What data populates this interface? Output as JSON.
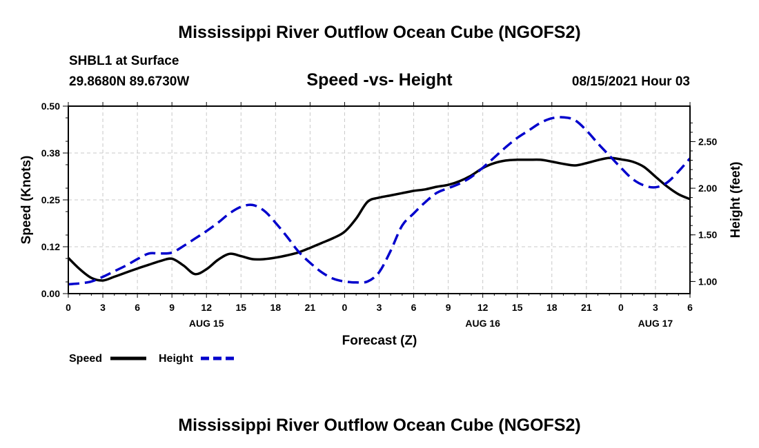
{
  "page_title": "Mississippi River Outflow Ocean Cube (NGOFS2)",
  "footer_title": "Mississippi River Outflow Ocean Cube (NGOFS2)",
  "station": "SHBL1 at Surface",
  "coordinates": "29.8680N  89.6730W",
  "plot_title": "Speed -vs- Height",
  "datetime": "08/15/2021 Hour 03",
  "chart_data": {
    "type": "line",
    "xlabel": "Forecast (Z)",
    "ylabel_left": "Speed (Knots)",
    "ylabel_right": "Height (feet)",
    "x_range_hours": [
      0,
      54
    ],
    "x_tick_labels": [
      "0",
      "3",
      "6",
      "9",
      "12",
      "15",
      "18",
      "21",
      "0",
      "3",
      "6",
      "9",
      "12",
      "15",
      "18",
      "21",
      "0",
      "3",
      "6"
    ],
    "date_labels": [
      {
        "label": "AUG 15",
        "hour": 12
      },
      {
        "label": "AUG 16",
        "hour": 36
      },
      {
        "label": "AUG 17",
        "hour": 51
      }
    ],
    "y_left": {
      "range": [
        0,
        0.5
      ],
      "ticks": [
        "0.00",
        "0.12",
        "0.25",
        "0.38",
        "0.50"
      ]
    },
    "y_right": {
      "range": [
        0.87,
        2.88
      ],
      "ticks": [
        "1.00",
        "1.50",
        "2.00",
        "2.50"
      ]
    },
    "series": [
      {
        "name": "Speed",
        "axis": "left",
        "color": "#000000",
        "dash": "solid",
        "x": [
          0,
          1,
          2,
          3,
          4,
          5,
          6,
          7,
          8,
          9,
          10,
          11,
          12,
          13,
          14,
          15,
          16,
          17,
          18,
          19,
          20,
          21,
          22,
          23,
          24,
          25,
          26,
          27,
          28,
          29,
          30,
          31,
          32,
          33,
          34,
          35,
          36,
          37,
          38,
          39,
          40,
          41,
          42,
          43,
          44,
          45,
          46,
          47,
          48,
          49,
          50,
          51,
          52,
          53,
          54
        ],
        "values": [
          0.095,
          0.065,
          0.042,
          0.035,
          0.045,
          0.056,
          0.067,
          0.077,
          0.087,
          0.093,
          0.075,
          0.052,
          0.065,
          0.09,
          0.106,
          0.1,
          0.092,
          0.092,
          0.096,
          0.102,
          0.11,
          0.122,
          0.135,
          0.148,
          0.165,
          0.2,
          0.245,
          0.256,
          0.262,
          0.268,
          0.274,
          0.278,
          0.285,
          0.29,
          0.3,
          0.315,
          0.335,
          0.348,
          0.355,
          0.357,
          0.357,
          0.357,
          0.352,
          0.346,
          0.342,
          0.348,
          0.356,
          0.362,
          0.358,
          0.352,
          0.338,
          0.312,
          0.286,
          0.265,
          0.252
        ]
      },
      {
        "name": "Height",
        "axis": "right",
        "color": "#0000cc",
        "dash": "dashed",
        "x": [
          0,
          1,
          2,
          3,
          4,
          5,
          6,
          7,
          8,
          9,
          10,
          11,
          12,
          13,
          14,
          15,
          16,
          17,
          18,
          19,
          20,
          21,
          22,
          23,
          24,
          25,
          26,
          27,
          28,
          29,
          30,
          31,
          32,
          33,
          34,
          35,
          36,
          37,
          38,
          39,
          40,
          41,
          42,
          43,
          44,
          45,
          46,
          47,
          48,
          49,
          50,
          51,
          52,
          53,
          54
        ],
        "values": [
          0.97,
          0.98,
          1.0,
          1.05,
          1.11,
          1.17,
          1.24,
          1.3,
          1.3,
          1.31,
          1.38,
          1.46,
          1.54,
          1.63,
          1.73,
          1.8,
          1.82,
          1.76,
          1.63,
          1.48,
          1.32,
          1.2,
          1.1,
          1.03,
          1.0,
          0.99,
          1.0,
          1.1,
          1.33,
          1.6,
          1.73,
          1.85,
          1.95,
          2.0,
          2.05,
          2.12,
          2.22,
          2.33,
          2.44,
          2.54,
          2.62,
          2.7,
          2.75,
          2.76,
          2.73,
          2.62,
          2.48,
          2.35,
          2.22,
          2.1,
          2.03,
          2.01,
          2.06,
          2.18,
          2.32
        ]
      }
    ],
    "legend": [
      {
        "label": "Speed",
        "color": "#000000",
        "dash": "solid"
      },
      {
        "label": "Height",
        "color": "#0000cc",
        "dash": "dashed"
      }
    ],
    "legend_position": "bottom-left",
    "grid": true
  }
}
